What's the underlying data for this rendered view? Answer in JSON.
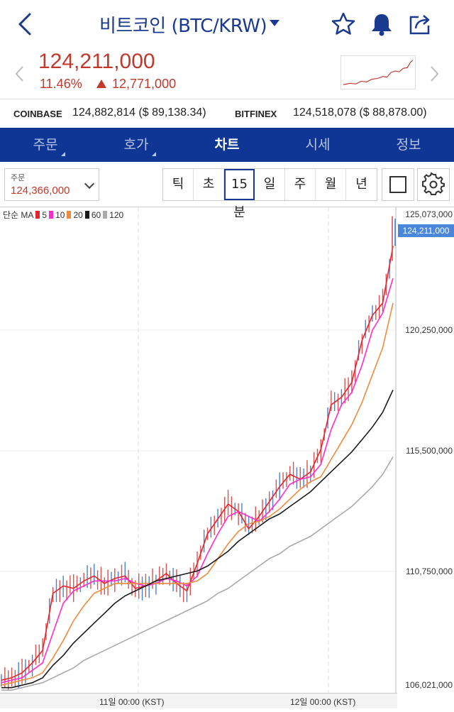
{
  "header": {
    "title": "비트코인 (BTC/KRW)",
    "icons": [
      "back-chevron-icon",
      "star-icon",
      "bell-icon",
      "share-icon"
    ]
  },
  "price": {
    "current": "124,211,000",
    "change_pct": "11.46%",
    "change_abs": "12,771,000",
    "color": "#c0392b"
  },
  "exchanges": [
    {
      "name": "COINBASE",
      "value": "124,882,814 ($ 89,138.34)"
    },
    {
      "name": "BITFINEX",
      "value": "124,518,078 ($ 88,878.00)"
    }
  ],
  "tabs": [
    {
      "label": "주문",
      "active": false
    },
    {
      "label": "호가",
      "active": false
    },
    {
      "label": "차트",
      "active": true
    },
    {
      "label": "시세",
      "active": false
    },
    {
      "label": "정보",
      "active": false
    }
  ],
  "order": {
    "label": "주문",
    "value": "124,366,000"
  },
  "timeframes": [
    "틱",
    "초",
    "15분",
    "일",
    "주",
    "월",
    "년"
  ],
  "active_timeframe": "15분",
  "legend": {
    "prefix": "단순 MA",
    "items": [
      {
        "label": "5",
        "color": "#e8232b"
      },
      {
        "label": "10",
        "color": "#ff2bd0"
      },
      {
        "label": "20",
        "color": "#f08a3c"
      },
      {
        "label": "60",
        "color": "#1a1a1a"
      },
      {
        "label": "120",
        "color": "#aaaaaa"
      }
    ]
  },
  "current_price_tag": "124,211,000",
  "chart_data": {
    "type": "line",
    "title": "",
    "y_ticks": [
      "125,073,000",
      "120,250,000",
      "115,500,000",
      "110,750,000",
      "106,021,000"
    ],
    "ylim": [
      106021000,
      125073000
    ],
    "x_ticks": [
      "11일 00:00 (KST)",
      "12일 00:00 (KST)"
    ],
    "grid": true,
    "series": [
      {
        "name": "5",
        "color": "#e8232b",
        "values": [
          106.3,
          106.4,
          106.6,
          107.0,
          107.5,
          109.8,
          110.1,
          110.0,
          110.3,
          110.5,
          110.2,
          110.4,
          110.5,
          110.0,
          110.1,
          110.3,
          110.6,
          110.2,
          109.9,
          111.0,
          112.2,
          112.8,
          113.4,
          113.1,
          112.4,
          112.9,
          113.5,
          114.1,
          114.6,
          114.4,
          114.7,
          115.6,
          117.4,
          117.7,
          118.3,
          120.0,
          121.0,
          121.5,
          123.8
        ]
      },
      {
        "name": "10",
        "color": "#ff2bd0",
        "values": [
          106.2,
          106.3,
          106.4,
          106.7,
          107.0,
          108.2,
          109.4,
          109.9,
          110.1,
          110.3,
          110.3,
          110.3,
          110.4,
          110.2,
          110.1,
          110.2,
          110.4,
          110.3,
          110.1,
          110.5,
          111.4,
          112.2,
          112.9,
          113.1,
          112.9,
          112.7,
          113.1,
          113.6,
          114.2,
          114.4,
          114.5,
          115.0,
          116.4,
          117.4,
          117.9,
          119.0,
          120.4,
          121.1,
          122.5
        ]
      },
      {
        "name": "20",
        "color": "#f08a3c",
        "values": [
          106.1,
          106.2,
          106.3,
          106.4,
          106.6,
          107.2,
          107.9,
          108.7,
          109.3,
          109.8,
          110.0,
          110.2,
          110.2,
          110.2,
          110.2,
          110.2,
          110.2,
          110.2,
          110.2,
          110.3,
          110.6,
          111.2,
          111.8,
          112.3,
          112.6,
          112.7,
          112.9,
          113.2,
          113.6,
          114.0,
          114.3,
          114.5,
          115.2,
          115.9,
          116.6,
          117.5,
          118.6,
          119.7,
          121.5
        ]
      },
      {
        "name": "60",
        "color": "#1a1a1a",
        "values": [
          106.0,
          106.0,
          106.1,
          106.2,
          106.4,
          106.9,
          107.3,
          107.8,
          108.2,
          108.6,
          109.0,
          109.4,
          109.7,
          109.9,
          110.1,
          110.3,
          110.4,
          110.5,
          110.6,
          110.7,
          110.9,
          111.2,
          111.5,
          111.9,
          112.2,
          112.5,
          112.8,
          113.0,
          113.3,
          113.6,
          113.9,
          114.3,
          114.7,
          115.1,
          115.5,
          116.0,
          116.5,
          117.1,
          118.0
        ]
      },
      {
        "name": "120",
        "color": "#aaaaaa",
        "values": [
          105.9,
          105.9,
          106.0,
          106.1,
          106.2,
          106.4,
          106.6,
          106.8,
          107.1,
          107.3,
          107.5,
          107.7,
          107.9,
          108.1,
          108.3,
          108.5,
          108.7,
          108.9,
          109.1,
          109.3,
          109.5,
          109.8,
          110.0,
          110.3,
          110.6,
          110.9,
          111.2,
          111.4,
          111.7,
          111.9,
          112.1,
          112.4,
          112.7,
          113.0,
          113.3,
          113.7,
          114.1,
          114.6,
          115.3
        ]
      }
    ]
  }
}
